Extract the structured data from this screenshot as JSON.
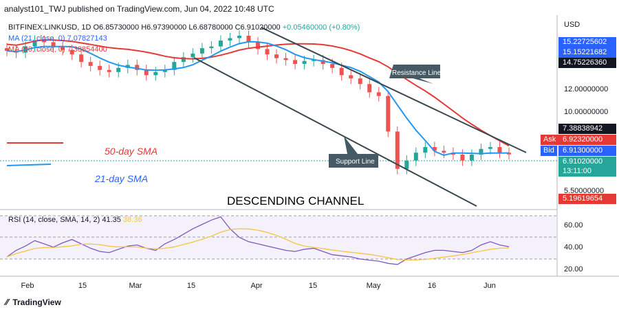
{
  "header": {
    "published": "analyst101_TWJ published on TradingView.com, Jun 04, 2022 10:48 UTC"
  },
  "legend": {
    "symbol": "BITFINEX:LINKUSD, 1D",
    "ohlc": "O6.85730000 H6.97390000 L6.68780000 C6.91020000",
    "change": "+0.05460000 (+0.80%)",
    "ma21": "MA (21, close, 0) 7.07827143",
    "ma50": "MA (50, close, 0) 7.38854400",
    "rsi": "RSI (14, close, SMA, 14, 2) 41.35",
    "rsi_ma": "38.36"
  },
  "annotations": {
    "resistance": "Resistance Line",
    "support": "Support Line",
    "sma50": "50-day SMA",
    "sma21": "21-day SMA",
    "channel": "DESCENDING CHANNEL"
  },
  "price_axis": {
    "currency": "USD",
    "ticks": [
      "12.00000000",
      "10.00000000",
      "5.50000000"
    ],
    "tags": [
      {
        "label": "15.22725602",
        "color": "#2962ff"
      },
      {
        "label": "15.15221682",
        "color": "#2962ff"
      },
      {
        "label": "14.75226360",
        "color": "#131722"
      },
      {
        "label": "7.38838942",
        "color": "#131722"
      },
      {
        "label": "6.92320000",
        "color": "#e53935"
      },
      {
        "label": "6.91300000",
        "color": "#2962ff"
      },
      {
        "label": "6.91020000",
        "color": "#26a69a"
      },
      {
        "label": "13:11:00",
        "color": "#26a69a"
      },
      {
        "label": "5.19619654",
        "color": "#e53935"
      }
    ],
    "ask": "Ask",
    "bid": "Bid"
  },
  "rsi_axis": {
    "ticks": [
      "60.00",
      "40.00",
      "20.00"
    ]
  },
  "time_axis": {
    "labels": [
      "Feb",
      "15",
      "Mar",
      "15",
      "Apr",
      "15",
      "May",
      "16",
      "Jun"
    ]
  },
  "footer": {
    "brand": "TradingView"
  },
  "chart_data": {
    "type": "candlestick",
    "symbol": "BITFINEX:LINKUSD",
    "timeframe": "1D",
    "last_close": 6.9102,
    "series": [
      {
        "name": "MA (21, close, 0)",
        "last": 7.07827143
      },
      {
        "name": "MA (50, close, 0)",
        "last": 7.388544
      },
      {
        "name": "RSI (14, close, SMA, 14, 2)",
        "last": 41.35
      }
    ],
    "close_path": [
      15.0,
      14.8,
      15.5,
      16.2,
      16.0,
      15.4,
      15.1,
      14.6,
      13.8,
      13.4,
      13.0,
      12.8,
      13.2,
      13.5,
      13.0,
      12.5,
      12.8,
      13.0,
      13.8,
      14.3,
      14.7,
      15.3,
      15.5,
      16.2,
      16.5,
      16.8,
      16.0,
      15.2,
      14.6,
      14.2,
      14.0,
      13.6,
      13.9,
      14.0,
      13.6,
      13.2,
      12.5,
      12.2,
      11.7,
      11.0,
      10.7,
      8.2,
      6.2,
      6.6,
      7.0,
      7.3,
      7.1,
      7.0,
      6.9,
      6.6,
      6.9,
      7.2,
      7.3,
      7.0,
      6.91
    ],
    "rsi_values": [
      32,
      38,
      42,
      47,
      44,
      41,
      45,
      48,
      44,
      40,
      37,
      36,
      39,
      42,
      43,
      40,
      38,
      44,
      48,
      53,
      58,
      62,
      66,
      69,
      58,
      50,
      46,
      44,
      42,
      40,
      38,
      37,
      39,
      40,
      37,
      34,
      33,
      32,
      30,
      29,
      28,
      26,
      25,
      30,
      33,
      36,
      38,
      38,
      37,
      36,
      38,
      43,
      46,
      43,
      41.35
    ]
  }
}
